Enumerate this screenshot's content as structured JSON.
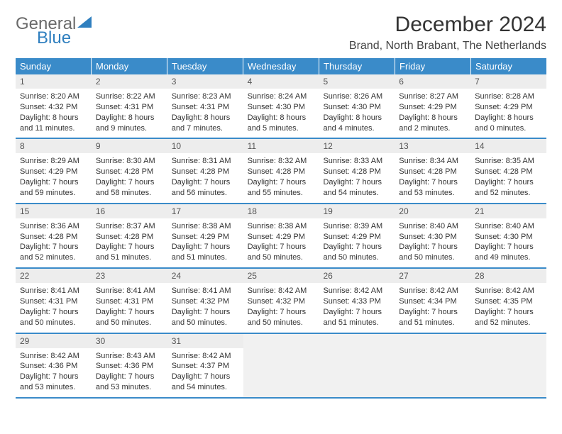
{
  "logo": {
    "general": "General",
    "blue": "Blue"
  },
  "title": "December 2024",
  "location": "Brand, North Brabant, The Netherlands",
  "colors": {
    "header_bg": "#3a8bc9",
    "header_text": "#ffffff",
    "daynum_bg": "#ededed",
    "row_border": "#3a8bc9",
    "logo_gray": "#6a6a6a",
    "logo_blue": "#2f7fbf"
  },
  "day_headers": [
    "Sunday",
    "Monday",
    "Tuesday",
    "Wednesday",
    "Thursday",
    "Friday",
    "Saturday"
  ],
  "weeks": [
    [
      {
        "num": "1",
        "sunrise": "Sunrise: 8:20 AM",
        "sunset": "Sunset: 4:32 PM",
        "day1": "Daylight: 8 hours",
        "day2": "and 11 minutes."
      },
      {
        "num": "2",
        "sunrise": "Sunrise: 8:22 AM",
        "sunset": "Sunset: 4:31 PM",
        "day1": "Daylight: 8 hours",
        "day2": "and 9 minutes."
      },
      {
        "num": "3",
        "sunrise": "Sunrise: 8:23 AM",
        "sunset": "Sunset: 4:31 PM",
        "day1": "Daylight: 8 hours",
        "day2": "and 7 minutes."
      },
      {
        "num": "4",
        "sunrise": "Sunrise: 8:24 AM",
        "sunset": "Sunset: 4:30 PM",
        "day1": "Daylight: 8 hours",
        "day2": "and 5 minutes."
      },
      {
        "num": "5",
        "sunrise": "Sunrise: 8:26 AM",
        "sunset": "Sunset: 4:30 PM",
        "day1": "Daylight: 8 hours",
        "day2": "and 4 minutes."
      },
      {
        "num": "6",
        "sunrise": "Sunrise: 8:27 AM",
        "sunset": "Sunset: 4:29 PM",
        "day1": "Daylight: 8 hours",
        "day2": "and 2 minutes."
      },
      {
        "num": "7",
        "sunrise": "Sunrise: 8:28 AM",
        "sunset": "Sunset: 4:29 PM",
        "day1": "Daylight: 8 hours",
        "day2": "and 0 minutes."
      }
    ],
    [
      {
        "num": "8",
        "sunrise": "Sunrise: 8:29 AM",
        "sunset": "Sunset: 4:29 PM",
        "day1": "Daylight: 7 hours",
        "day2": "and 59 minutes."
      },
      {
        "num": "9",
        "sunrise": "Sunrise: 8:30 AM",
        "sunset": "Sunset: 4:28 PM",
        "day1": "Daylight: 7 hours",
        "day2": "and 58 minutes."
      },
      {
        "num": "10",
        "sunrise": "Sunrise: 8:31 AM",
        "sunset": "Sunset: 4:28 PM",
        "day1": "Daylight: 7 hours",
        "day2": "and 56 minutes."
      },
      {
        "num": "11",
        "sunrise": "Sunrise: 8:32 AM",
        "sunset": "Sunset: 4:28 PM",
        "day1": "Daylight: 7 hours",
        "day2": "and 55 minutes."
      },
      {
        "num": "12",
        "sunrise": "Sunrise: 8:33 AM",
        "sunset": "Sunset: 4:28 PM",
        "day1": "Daylight: 7 hours",
        "day2": "and 54 minutes."
      },
      {
        "num": "13",
        "sunrise": "Sunrise: 8:34 AM",
        "sunset": "Sunset: 4:28 PM",
        "day1": "Daylight: 7 hours",
        "day2": "and 53 minutes."
      },
      {
        "num": "14",
        "sunrise": "Sunrise: 8:35 AM",
        "sunset": "Sunset: 4:28 PM",
        "day1": "Daylight: 7 hours",
        "day2": "and 52 minutes."
      }
    ],
    [
      {
        "num": "15",
        "sunrise": "Sunrise: 8:36 AM",
        "sunset": "Sunset: 4:28 PM",
        "day1": "Daylight: 7 hours",
        "day2": "and 52 minutes."
      },
      {
        "num": "16",
        "sunrise": "Sunrise: 8:37 AM",
        "sunset": "Sunset: 4:28 PM",
        "day1": "Daylight: 7 hours",
        "day2": "and 51 minutes."
      },
      {
        "num": "17",
        "sunrise": "Sunrise: 8:38 AM",
        "sunset": "Sunset: 4:29 PM",
        "day1": "Daylight: 7 hours",
        "day2": "and 51 minutes."
      },
      {
        "num": "18",
        "sunrise": "Sunrise: 8:38 AM",
        "sunset": "Sunset: 4:29 PM",
        "day1": "Daylight: 7 hours",
        "day2": "and 50 minutes."
      },
      {
        "num": "19",
        "sunrise": "Sunrise: 8:39 AM",
        "sunset": "Sunset: 4:29 PM",
        "day1": "Daylight: 7 hours",
        "day2": "and 50 minutes."
      },
      {
        "num": "20",
        "sunrise": "Sunrise: 8:40 AM",
        "sunset": "Sunset: 4:30 PM",
        "day1": "Daylight: 7 hours",
        "day2": "and 50 minutes."
      },
      {
        "num": "21",
        "sunrise": "Sunrise: 8:40 AM",
        "sunset": "Sunset: 4:30 PM",
        "day1": "Daylight: 7 hours",
        "day2": "and 49 minutes."
      }
    ],
    [
      {
        "num": "22",
        "sunrise": "Sunrise: 8:41 AM",
        "sunset": "Sunset: 4:31 PM",
        "day1": "Daylight: 7 hours",
        "day2": "and 50 minutes."
      },
      {
        "num": "23",
        "sunrise": "Sunrise: 8:41 AM",
        "sunset": "Sunset: 4:31 PM",
        "day1": "Daylight: 7 hours",
        "day2": "and 50 minutes."
      },
      {
        "num": "24",
        "sunrise": "Sunrise: 8:41 AM",
        "sunset": "Sunset: 4:32 PM",
        "day1": "Daylight: 7 hours",
        "day2": "and 50 minutes."
      },
      {
        "num": "25",
        "sunrise": "Sunrise: 8:42 AM",
        "sunset": "Sunset: 4:32 PM",
        "day1": "Daylight: 7 hours",
        "day2": "and 50 minutes."
      },
      {
        "num": "26",
        "sunrise": "Sunrise: 8:42 AM",
        "sunset": "Sunset: 4:33 PM",
        "day1": "Daylight: 7 hours",
        "day2": "and 51 minutes."
      },
      {
        "num": "27",
        "sunrise": "Sunrise: 8:42 AM",
        "sunset": "Sunset: 4:34 PM",
        "day1": "Daylight: 7 hours",
        "day2": "and 51 minutes."
      },
      {
        "num": "28",
        "sunrise": "Sunrise: 8:42 AM",
        "sunset": "Sunset: 4:35 PM",
        "day1": "Daylight: 7 hours",
        "day2": "and 52 minutes."
      }
    ],
    [
      {
        "num": "29",
        "sunrise": "Sunrise: 8:42 AM",
        "sunset": "Sunset: 4:36 PM",
        "day1": "Daylight: 7 hours",
        "day2": "and 53 minutes."
      },
      {
        "num": "30",
        "sunrise": "Sunrise: 8:43 AM",
        "sunset": "Sunset: 4:36 PM",
        "day1": "Daylight: 7 hours",
        "day2": "and 53 minutes."
      },
      {
        "num": "31",
        "sunrise": "Sunrise: 8:42 AM",
        "sunset": "Sunset: 4:37 PM",
        "day1": "Daylight: 7 hours",
        "day2": "and 54 minutes."
      },
      {
        "empty": true
      },
      {
        "empty": true
      },
      {
        "empty": true
      },
      {
        "empty": true
      }
    ]
  ]
}
